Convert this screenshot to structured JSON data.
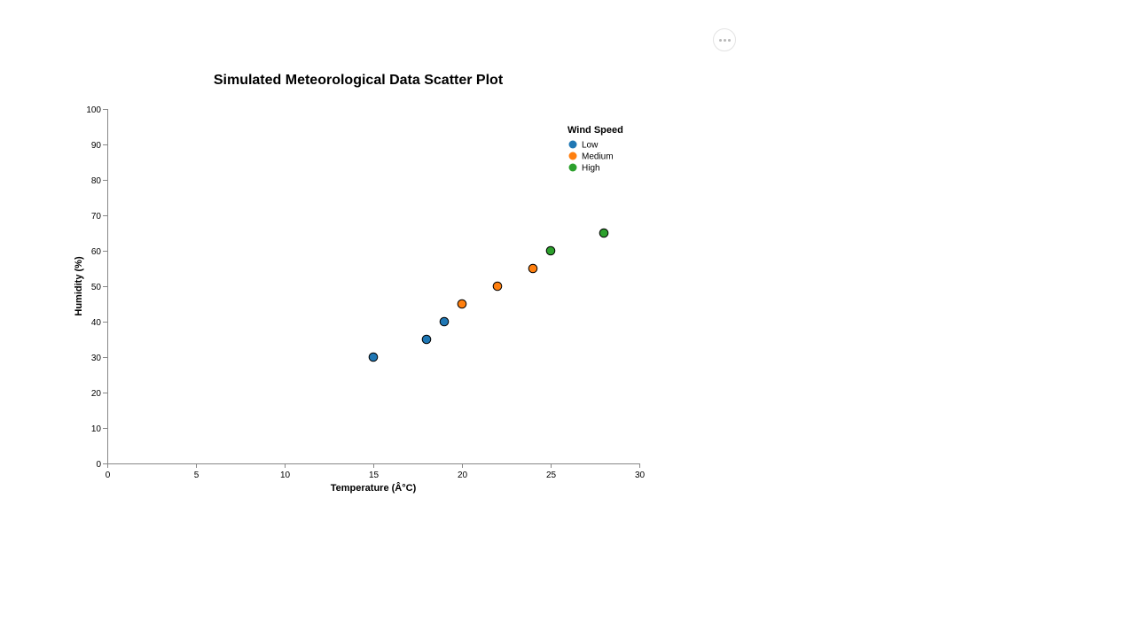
{
  "chart_data": {
    "type": "scatter",
    "title": "Simulated Meteorological Data Scatter Plot",
    "xlabel": "Temperature (Â°C)",
    "ylabel": "Humidity (%)",
    "xlim": [
      0,
      30
    ],
    "ylim": [
      0,
      100
    ],
    "x_ticks": [
      0,
      5,
      10,
      15,
      20,
      25,
      30
    ],
    "y_ticks": [
      0,
      10,
      20,
      30,
      40,
      50,
      60,
      70,
      80,
      90,
      100
    ],
    "grid": false,
    "legend": {
      "title": "Wind Speed",
      "placement": "top-right",
      "entries": [
        {
          "name": "Low",
          "color": "#1f77b4"
        },
        {
          "name": "Medium",
          "color": "#ff7f0e"
        },
        {
          "name": "High",
          "color": "#2ca02c"
        }
      ]
    },
    "points": [
      {
        "x": 15,
        "y": 30,
        "category": "Low"
      },
      {
        "x": 18,
        "y": 35,
        "category": "Low"
      },
      {
        "x": 19,
        "y": 40,
        "category": "Low"
      },
      {
        "x": 20,
        "y": 45,
        "category": "Medium"
      },
      {
        "x": 22,
        "y": 50,
        "category": "Medium"
      },
      {
        "x": 24,
        "y": 55,
        "category": "Medium"
      },
      {
        "x": 25,
        "y": 60,
        "category": "High"
      },
      {
        "x": 28,
        "y": 65,
        "category": "High"
      }
    ]
  },
  "toolbar": {
    "actions_icon": "more-horizontal-icon"
  }
}
